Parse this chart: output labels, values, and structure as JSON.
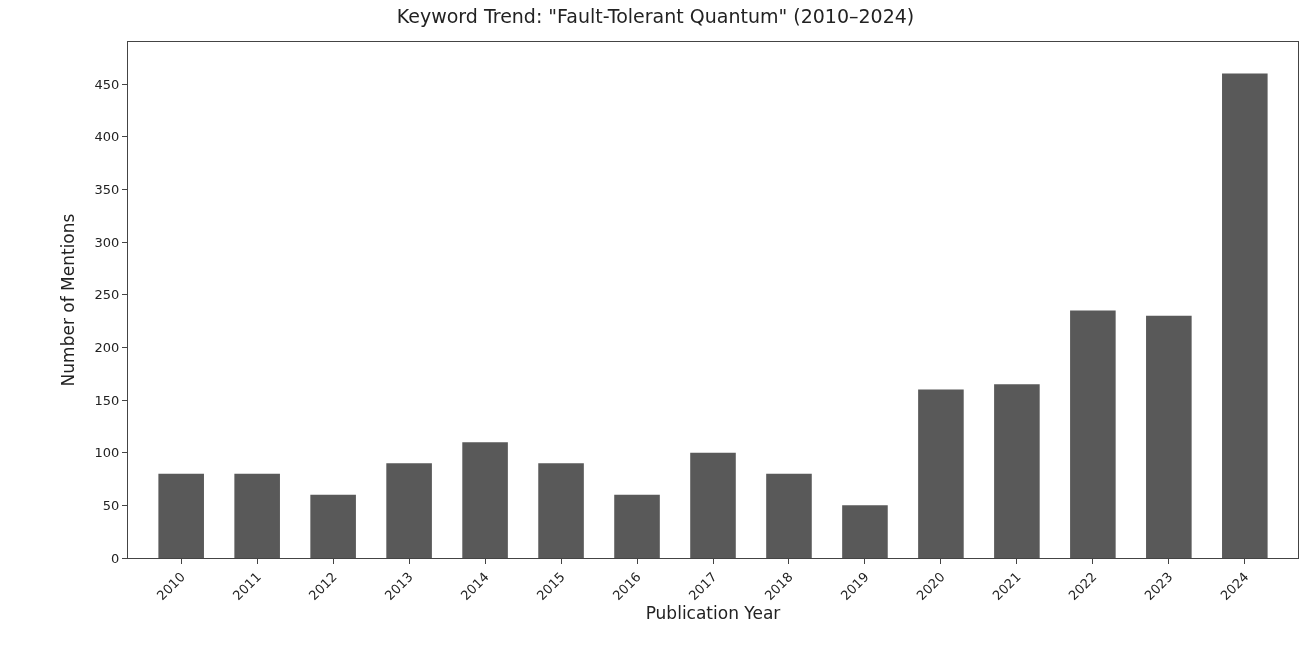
{
  "chart_data": {
    "type": "bar",
    "title": "Keyword Trend: \"Fault-Tolerant Quantum\" (2010–2024)",
    "xlabel": "Publication Year",
    "ylabel": "Number of Mentions",
    "categories": [
      "2010",
      "2011",
      "2012",
      "2013",
      "2014",
      "2015",
      "2016",
      "2017",
      "2018",
      "2019",
      "2020",
      "2021",
      "2022",
      "2023",
      "2024"
    ],
    "values": [
      80,
      80,
      60,
      90,
      110,
      90,
      60,
      100,
      80,
      50,
      160,
      165,
      235,
      230,
      460
    ],
    "color": "#595959",
    "ylim": [
      0,
      490
    ],
    "yticks": [
      0,
      50,
      100,
      150,
      200,
      250,
      300,
      350,
      400,
      450
    ]
  }
}
